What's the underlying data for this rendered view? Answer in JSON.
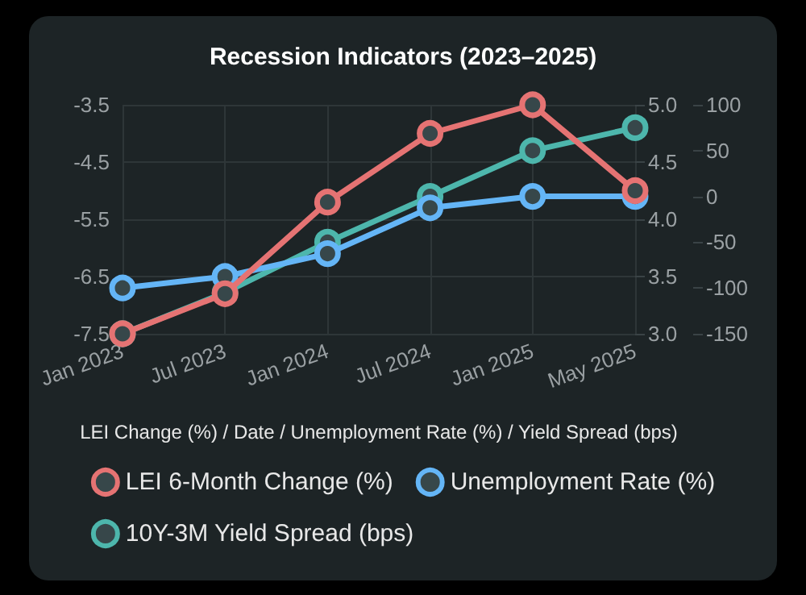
{
  "chart_data": {
    "type": "line",
    "title": "Recession Indicators (2023–2025)",
    "xlabel": "LEI Change (%) / Date / Unemployment Rate (%) / Yield Spread (bps)",
    "categories": [
      "Jan 2023",
      "Jul 2023",
      "Jan 2024",
      "Jul 2024",
      "Jan 2025",
      "May 2025"
    ],
    "series": [
      {
        "name": "LEI 6-Month Change (%)",
        "color": "#e57373",
        "values": [
          -7.5,
          -6.8,
          -5.2,
          -4.0,
          -3.5,
          -5.0
        ]
      },
      {
        "name": "Unemployment Rate (%)",
        "color": "#64b5f6",
        "axis": "y2",
        "values": [
          3.4,
          3.5,
          3.7,
          4.1,
          4.2,
          4.2
        ]
      },
      {
        "name": "10Y-3M Yield Spread (bps)",
        "color": "#4db6ac",
        "axis": "y3",
        "values": [
          -150,
          -105,
          -50,
          0,
          50,
          75
        ]
      }
    ],
    "ylim": [
      -7.5,
      -3.5
    ],
    "yticks": [
      -7.5,
      -6.5,
      -5.5,
      -4.5,
      -3.5
    ],
    "y2lim": [
      3.0,
      5.0
    ],
    "y2ticks": [
      {
        "value": 3,
        "label": "3.0"
      },
      3.5,
      {
        "value": 4,
        "label": "4.0"
      },
      4.5,
      {
        "value": 5,
        "label": "5.0"
      }
    ],
    "y3lim": [
      -150,
      100
    ],
    "y3ticks": [
      -150,
      -100,
      -50,
      0,
      50,
      100
    ],
    "grid": true,
    "legend": "bottom",
    "marker": "circle",
    "line_style": "solid"
  }
}
